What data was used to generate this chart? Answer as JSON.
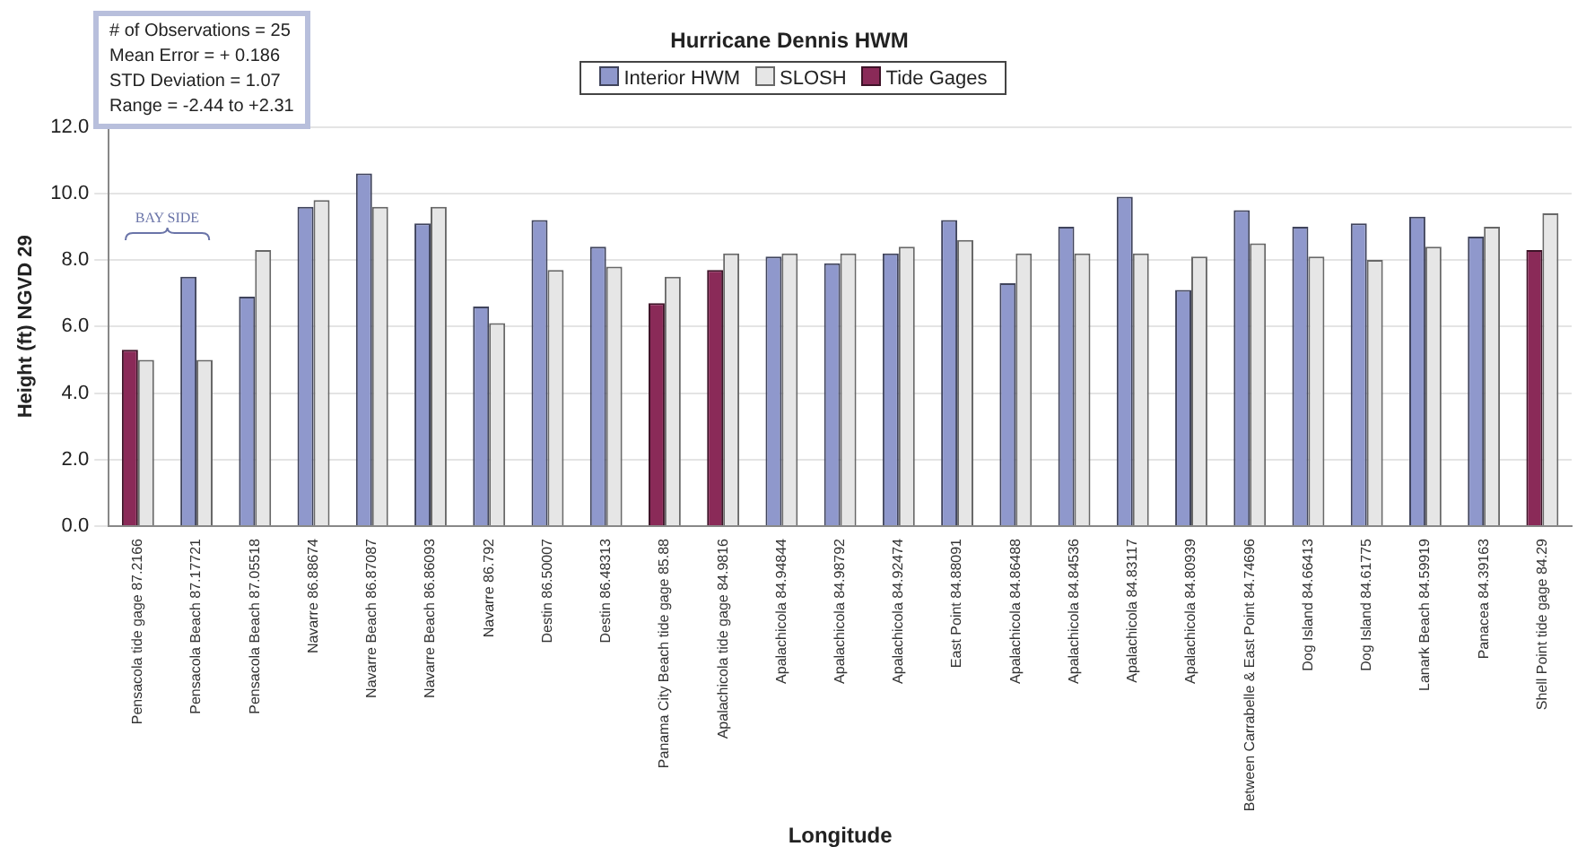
{
  "chart_data": {
    "type": "bar",
    "title": "Hurricane Dennis HWM",
    "xlabel": "Longitude",
    "ylabel": "Height (ft) NGVD 29",
    "categories": [
      "Pensacola tide gage 87.2166",
      "Pensacola Beach 87.17721",
      "Pensacola Beach 87.05518",
      "Navarre 86.88674",
      "Navarre Beach 86.87087",
      "Navarre Beach 86.86093",
      "Navarre 86.792",
      "Destin 86.50007",
      "Destin 86.48313",
      "Panama City Beach tide gage 85.88",
      "Apalachicola tide gage 84.9816",
      "Apalachicola 84.94844",
      "Apalachicola 84.98792",
      "Apalachicola 84.92474",
      "East Point 84.88091",
      "Apalachicola 84.86488",
      "Apalachicola 84.84536",
      "Apalachicola 84.83117",
      "Apalachicola 84.80939",
      "Between Carrabelle & East Point 84.74696",
      "Dog Island 84.66413",
      "Dog Island 84.61775",
      "Lanark Beach 84.59919",
      "Panacea 84.39163",
      "Shell Point tide gage 84.29"
    ],
    "series": [
      {
        "name": "Interior HWM",
        "color": "#8f98cc",
        "values": [
          null,
          7.5,
          6.9,
          9.6,
          10.6,
          9.1,
          6.6,
          9.2,
          8.4,
          null,
          null,
          8.1,
          7.9,
          8.2,
          9.2,
          7.3,
          9.0,
          9.9,
          7.1,
          9.5,
          9.0,
          9.1,
          9.3,
          8.7,
          null
        ]
      },
      {
        "name": "SLOSH",
        "color": "#e6e6e6",
        "values": [
          5.0,
          5.0,
          8.3,
          9.8,
          9.6,
          9.6,
          6.1,
          7.7,
          7.8,
          7.5,
          8.2,
          8.2,
          8.2,
          8.4,
          8.6,
          8.2,
          8.2,
          8.2,
          8.1,
          8.5,
          8.1,
          8.0,
          8.4,
          9.0,
          9.4
        ]
      },
      {
        "name": "Tide Gages",
        "color": "#8a2a58",
        "values": [
          5.3,
          null,
          null,
          null,
          null,
          null,
          null,
          null,
          null,
          6.7,
          7.7,
          null,
          null,
          null,
          null,
          null,
          null,
          null,
          null,
          null,
          null,
          null,
          null,
          null,
          8.3
        ]
      }
    ],
    "ylim": [
      0,
      12
    ],
    "yticks": [
      {
        "value": 0,
        "label": "0.0"
      },
      {
        "value": 2,
        "label": "2.0"
      },
      {
        "value": 4,
        "label": "4.0"
      },
      {
        "value": 6,
        "label": "6.0"
      },
      {
        "value": 8,
        "label": "8.0"
      },
      {
        "value": 10,
        "label": "10.0"
      },
      {
        "value": 12,
        "label": "12.0"
      }
    ],
    "grid": "y",
    "legend": "top",
    "annotations": [
      "# of Observations = 25",
      "Mean Error = + 0.186",
      "STD Deviation =  1.07",
      "Range =  -2.44 to +2.31",
      "BAY SIDE"
    ]
  }
}
